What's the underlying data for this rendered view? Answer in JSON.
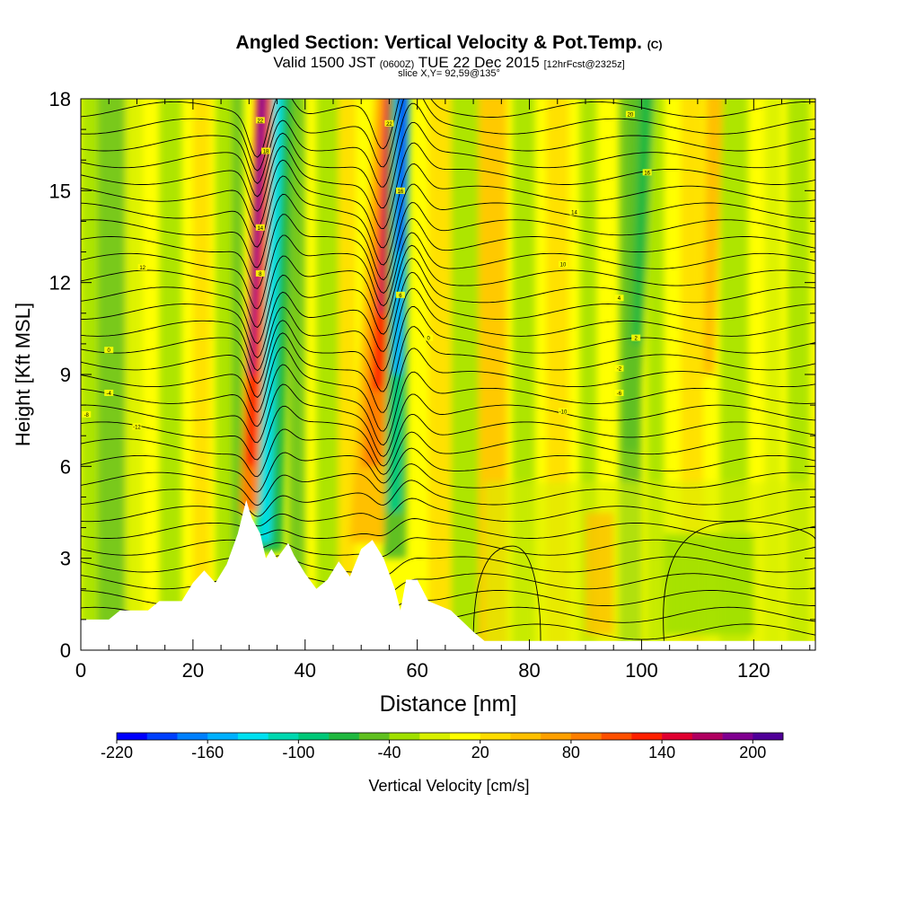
{
  "title": {
    "main": "Angled Section: Vertical Velocity & Pot.Temp.",
    "units": "(C)",
    "valid_prefix": "Valid 1500 JST",
    "utc": "(0600Z)",
    "valid_suffix": "TUE 22 Dec 2015",
    "forecast": "[12hrFcst@2325z]",
    "slice": "slice X,Y= 92,59@135°"
  },
  "chart_data": {
    "type": "heatmap",
    "xlabel": "Distance [nm]",
    "ylabel": "Height [Kft MSL]",
    "xlim": [
      0,
      131
    ],
    "ylim": [
      0,
      18
    ],
    "x_ticks": [
      "0",
      "20",
      "40",
      "60",
      "80",
      "100",
      "120"
    ],
    "y_ticks": [
      "0",
      "3",
      "6",
      "9",
      "12",
      "15",
      "18"
    ],
    "colorbar": {
      "label": "Vertical Velocity [cm/s]",
      "tick_labels": [
        "-220",
        "-160",
        "-100",
        "-40",
        "20",
        "80",
        "140",
        "200"
      ],
      "colors": [
        "#0000ff",
        "#0040ff",
        "#0080ff",
        "#00b0ff",
        "#00e0f0",
        "#00d8b0",
        "#00c878",
        "#20b840",
        "#60c020",
        "#a0e000",
        "#d8f000",
        "#ffff00",
        "#ffdc00",
        "#ffc000",
        "#ffa000",
        "#ff7f00",
        "#ff5000",
        "#ff2000",
        "#e00030",
        "#b00060",
        "#800090",
        "#500098"
      ]
    },
    "terrain_kft": [
      [
        0,
        1.0
      ],
      [
        5,
        1.0
      ],
      [
        7,
        1.3
      ],
      [
        12,
        1.3
      ],
      [
        14,
        1.6
      ],
      [
        18,
        1.6
      ],
      [
        20,
        2.2
      ],
      [
        22,
        2.6
      ],
      [
        24,
        2.2
      ],
      [
        26,
        2.8
      ],
      [
        28,
        3.8
      ],
      [
        29.5,
        4.9
      ],
      [
        30.5,
        4.3
      ],
      [
        32,
        3.8
      ],
      [
        33,
        3.0
      ],
      [
        34,
        3.3
      ],
      [
        35,
        3.0
      ],
      [
        37,
        3.5
      ],
      [
        38,
        3.1
      ],
      [
        40,
        2.5
      ],
      [
        42,
        2.0
      ],
      [
        44,
        2.3
      ],
      [
        46,
        2.9
      ],
      [
        48,
        2.4
      ],
      [
        50,
        3.3
      ],
      [
        52,
        3.6
      ],
      [
        54,
        3.0
      ],
      [
        56,
        2.0
      ],
      [
        57,
        1.3
      ],
      [
        58,
        2.3
      ],
      [
        60,
        2.3
      ],
      [
        62,
        1.6
      ],
      [
        66,
        1.3
      ],
      [
        70,
        0.6
      ],
      [
        72,
        0.3
      ],
      [
        100,
        0.3
      ],
      [
        131,
        0.3
      ]
    ],
    "updraft_bands_nm": [
      31,
      32,
      33,
      34,
      51,
      52,
      53,
      54
    ],
    "downdraft_bands_nm": [
      55,
      56,
      57,
      58
    ],
    "isentrope_labels": [
      "22",
      "22",
      "20",
      "18",
      "16",
      "16",
      "14",
      "14",
      "12",
      "10",
      "8",
      "6",
      "4",
      "2",
      "0",
      "0",
      "-2",
      "-4",
      "-6",
      "-8",
      "-10",
      "-12"
    ]
  }
}
